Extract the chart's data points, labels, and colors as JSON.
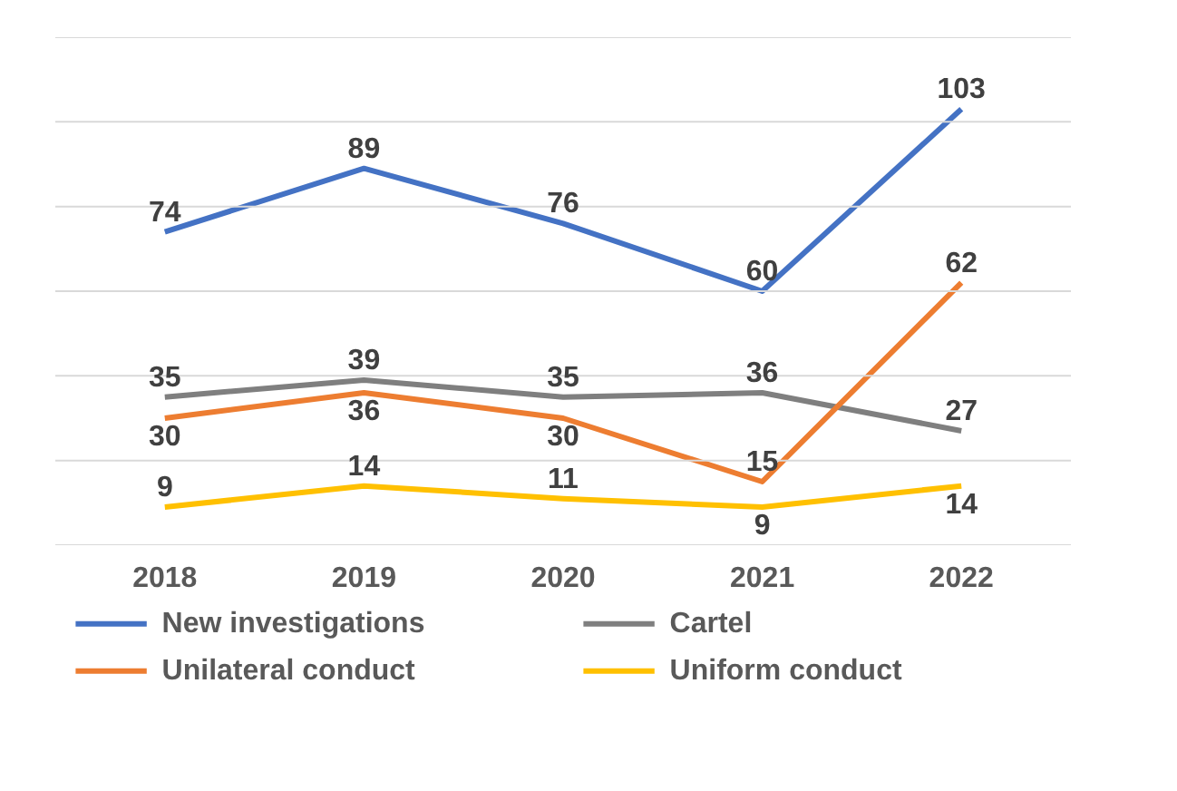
{
  "chart_data": {
    "type": "line",
    "categories": [
      "2018",
      "2019",
      "2020",
      "2021",
      "2022"
    ],
    "series": [
      {
        "name": "New investigations",
        "color": "#4472c4",
        "values": [
          74,
          89,
          76,
          60,
          103
        ]
      },
      {
        "name": "Cartel",
        "color": "#7f7f7f",
        "values": [
          35,
          39,
          35,
          36,
          27
        ]
      },
      {
        "name": "Unilateral conduct",
        "color": "#ed7d31",
        "values": [
          30,
          36,
          30,
          15,
          62
        ]
      },
      {
        "name": "Uniform conduct",
        "color": "#ffc000",
        "values": [
          9,
          14,
          11,
          9,
          14
        ]
      }
    ],
    "ylim": [
      0,
      120
    ],
    "yticks": [
      {
        "value": 0,
        "label": null
      },
      {
        "value": 20,
        "label": null
      },
      {
        "value": 40,
        "label": null
      },
      {
        "value": 60,
        "label": null
      },
      {
        "value": 80,
        "label": null
      },
      {
        "value": 100,
        "label": null
      },
      {
        "value": 120,
        "label": null
      }
    ],
    "tick_labels": "x",
    "grid": "y",
    "legend": "bottom",
    "data_labels": true,
    "marker": "none",
    "line_style": "solid"
  }
}
